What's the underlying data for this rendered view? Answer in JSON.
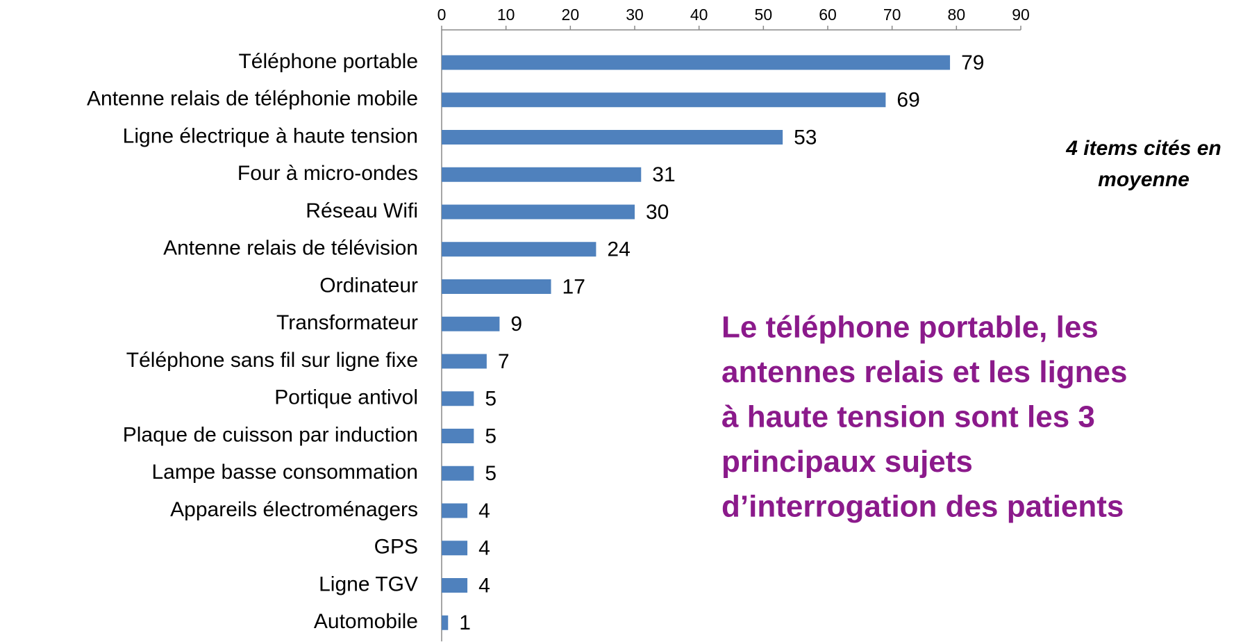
{
  "chart_data": {
    "type": "barh",
    "categories": [
      "Téléphone portable",
      "Antenne relais de téléphonie mobile",
      "Ligne électrique à haute tension",
      "Four à micro-ondes",
      "Réseau Wifi",
      "Antenne relais de télévision",
      "Ordinateur",
      "Transformateur",
      "Téléphone sans fil sur ligne fixe",
      "Portique antivol",
      "Plaque de cuisson par induction",
      "Lampe basse consommation",
      "Appareils électroménagers",
      "GPS",
      "Ligne TGV",
      "Automobile"
    ],
    "values": [
      79,
      69,
      53,
      31,
      30,
      24,
      17,
      9,
      7,
      5,
      5,
      5,
      4,
      4,
      4,
      1
    ],
    "color": "#4f81bd",
    "xlim": [
      0,
      90
    ],
    "xticks": [
      0,
      10,
      20,
      30,
      40,
      50,
      60,
      70,
      80,
      90
    ],
    "note": [
      "4 items cités en",
      "moyenne"
    ],
    "headline": [
      "Le téléphone portable, les",
      "antennes relais et les lignes",
      "à haute tension sont les 3",
      "principaux sujets",
      "d’interrogation des patients"
    ]
  }
}
